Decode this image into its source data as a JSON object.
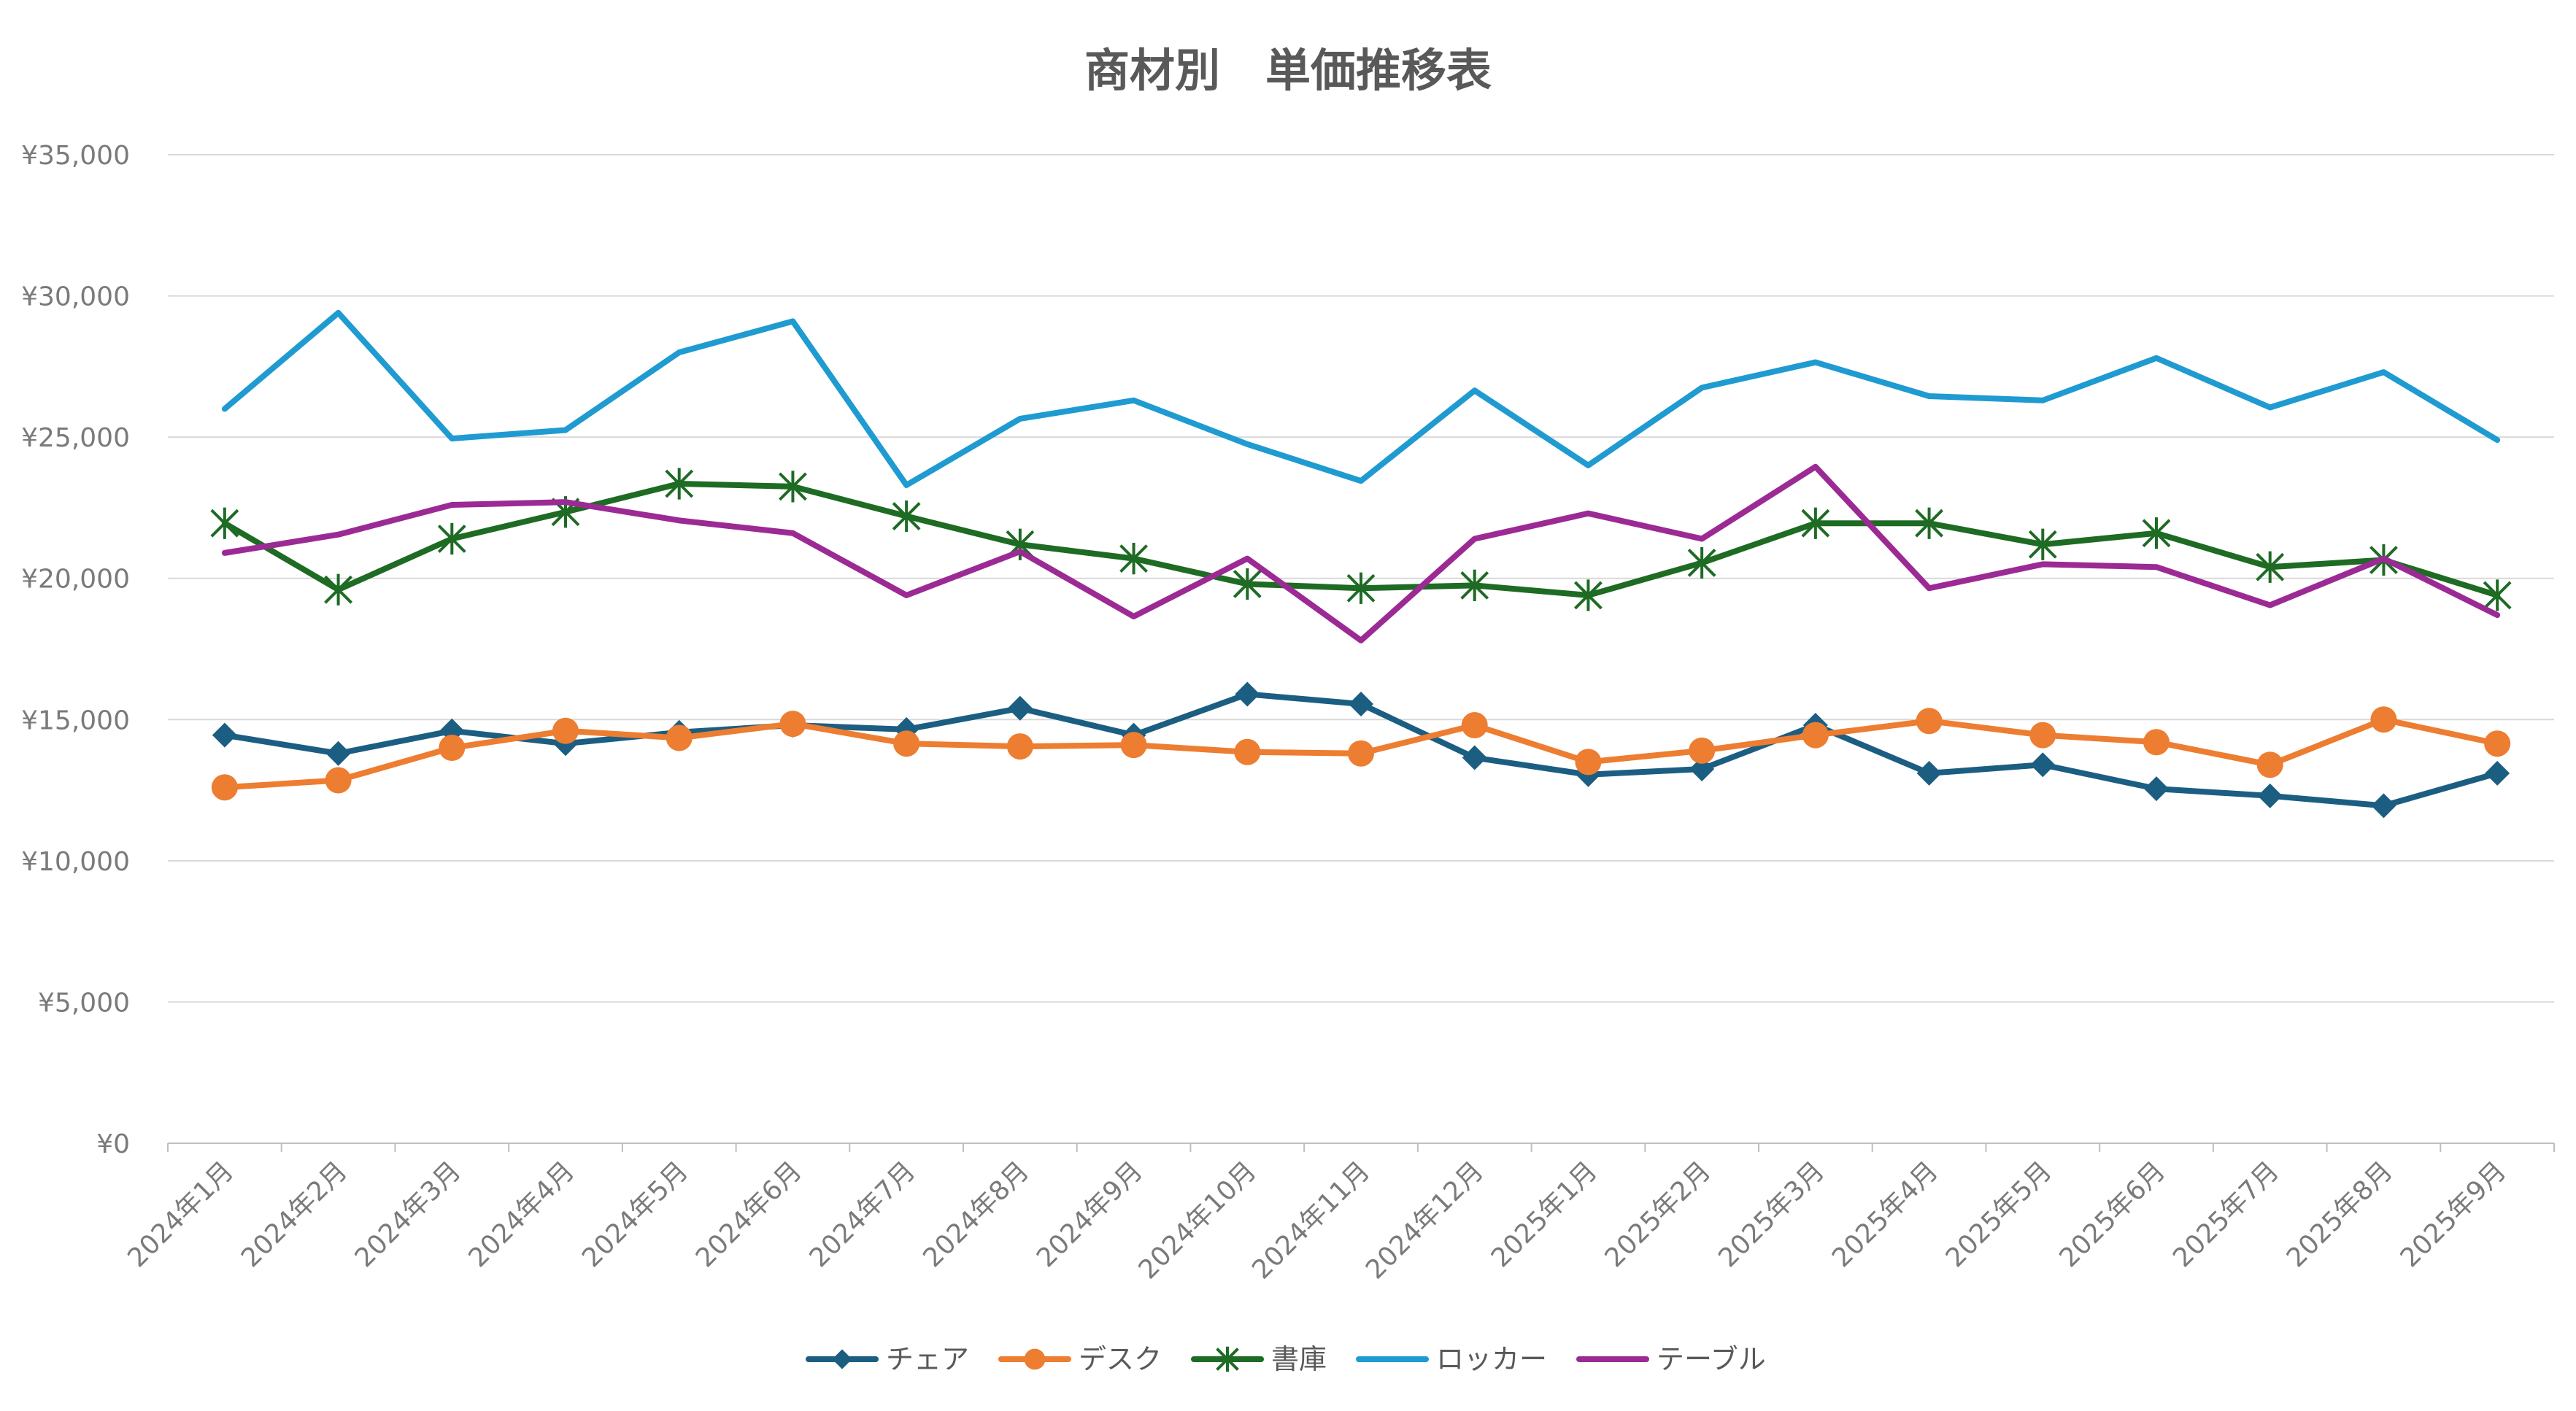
{
  "chart_data": {
    "type": "line",
    "title": "商材別　単価推移表",
    "xlabel": "",
    "ylabel": "",
    "ylim": [
      0,
      35000
    ],
    "yticks": [
      0,
      5000,
      10000,
      15000,
      20000,
      25000,
      30000,
      35000
    ],
    "ytick_labels": [
      "¥0",
      "¥5,000",
      "¥10,000",
      "¥15,000",
      "¥20,000",
      "¥25,000",
      "¥30,000",
      "¥35,000"
    ],
    "grid": true,
    "legend_position": "bottom",
    "categories": [
      "2024年1月",
      "2024年2月",
      "2024年3月",
      "2024年4月",
      "2024年5月",
      "2024年6月",
      "2024年7月",
      "2024年8月",
      "2024年9月",
      "2024年10月",
      "2024年11月",
      "2024年12月",
      "2025年1月",
      "2025年2月",
      "2025年3月",
      "2025年4月",
      "2025年5月",
      "2025年6月",
      "2025年7月",
      "2025年8月",
      "2025年9月"
    ],
    "series": [
      {
        "name": "チェア",
        "color": "#1b5e82",
        "marker": "diamond",
        "values": [
          14450,
          13800,
          14600,
          14150,
          14550,
          14800,
          14650,
          15400,
          14450,
          15900,
          15550,
          13650,
          13050,
          13250,
          14800,
          13100,
          13400,
          12550,
          12300,
          11950,
          13100
        ]
      },
      {
        "name": "デスク",
        "color": "#ed7d31",
        "marker": "circle",
        "values": [
          12600,
          12850,
          14000,
          14600,
          14350,
          14850,
          14150,
          14050,
          14100,
          13850,
          13800,
          14800,
          13500,
          13900,
          14450,
          14950,
          14450,
          14200,
          13400,
          15000,
          14150
        ]
      },
      {
        "name": "書庫",
        "color": "#1e6b24",
        "marker": "star",
        "values": [
          21950,
          19600,
          21400,
          22350,
          23350,
          23250,
          22200,
          21200,
          20700,
          19800,
          19650,
          19750,
          19400,
          20550,
          21950,
          21950,
          21200,
          21600,
          20400,
          20650,
          19400
        ]
      },
      {
        "name": "ロッカー",
        "color": "#1f9bd1",
        "marker": "none",
        "values": [
          26000,
          29400,
          24950,
          25250,
          28000,
          29100,
          23300,
          25650,
          26300,
          24750,
          23450,
          26650,
          24000,
          26750,
          27650,
          26450,
          26300,
          27800,
          26050,
          27300,
          24900
        ]
      },
      {
        "name": "テーブル",
        "color": "#9c2a94",
        "marker": "none",
        "values": [
          20900,
          21550,
          22600,
          22700,
          22050,
          21600,
          19400,
          20950,
          18650,
          20700,
          17800,
          21400,
          22300,
          21400,
          23950,
          19650,
          20500,
          20400,
          19050,
          20700,
          18700
        ]
      }
    ]
  }
}
